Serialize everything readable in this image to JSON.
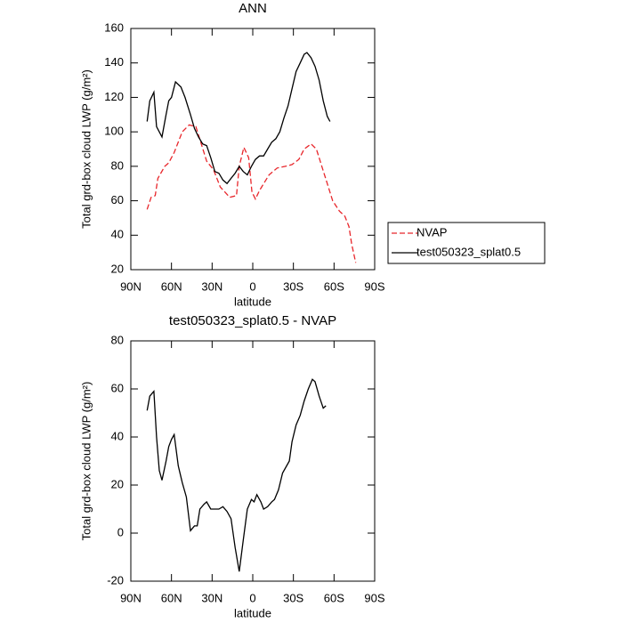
{
  "chart_data": [
    {
      "type": "line",
      "title": "ANN",
      "xlabel": "latitude",
      "ylabel": "Total grd-box cloud LWP (g/m²)",
      "xlim": [
        90,
        -90
      ],
      "ylim": [
        20,
        160
      ],
      "xticks": [
        {
          "value": 90,
          "label": "90N"
        },
        {
          "value": 60,
          "label": "60N"
        },
        {
          "value": 30,
          "label": "30N"
        },
        0,
        {
          "value": -30,
          "label": "30S"
        },
        {
          "value": -60,
          "label": "60S"
        },
        {
          "value": -90,
          "label": "90S"
        }
      ],
      "yticks": [
        20,
        40,
        60,
        80,
        100,
        120,
        140,
        160
      ],
      "legend": "outside right",
      "series": [
        {
          "name": "NVAP",
          "color": "#e8262b",
          "dash": true,
          "x": [
            78,
            75,
            72,
            70,
            65,
            62,
            58,
            52,
            47,
            42,
            34,
            29,
            24,
            17,
            12,
            10,
            6.6,
            3,
            0.6,
            -2,
            -5,
            -12,
            -18,
            -24,
            -29,
            -34,
            -38,
            -43,
            -47,
            -51,
            -55,
            -59,
            -64,
            -68,
            -71,
            -73,
            -76
          ],
          "values": [
            55,
            62,
            63,
            73,
            80,
            82,
            88,
            100,
            104,
            103,
            83,
            78,
            68,
            62,
            63,
            80,
            91,
            85,
            65,
            61,
            66,
            75,
            79,
            80,
            81,
            84,
            90,
            93,
            90,
            80,
            70,
            60,
            54,
            51,
            45,
            35,
            24
          ]
        },
        {
          "name": "test050323_splat0.5",
          "color": "#000000",
          "dash": false,
          "x": [
            78,
            76,
            73,
            71,
            67,
            64,
            62,
            60,
            57,
            53,
            50,
            46,
            43,
            40,
            37,
            34,
            31,
            28,
            25,
            22,
            19,
            16,
            13,
            10,
            7,
            4,
            1,
            -2,
            -5,
            -8,
            -11,
            -14,
            -17,
            -20,
            -23,
            -26,
            -29,
            -32,
            -35,
            -38,
            -40,
            -43,
            -46,
            -49,
            -52,
            -55,
            -57
          ],
          "values": [
            106,
            118,
            123,
            103,
            97,
            110,
            118,
            120,
            129,
            126,
            120,
            110,
            102,
            97,
            93,
            92,
            85,
            77,
            76,
            72,
            70,
            73,
            76,
            80,
            77,
            75,
            80,
            84,
            86,
            86,
            90,
            94,
            96,
            100,
            108,
            115,
            125,
            135,
            140,
            145,
            146,
            143,
            138,
            130,
            118,
            109,
            106
          ]
        }
      ]
    },
    {
      "type": "line",
      "title": "test050323_splat0.5 - NVAP",
      "xlabel": "latitude",
      "ylabel": "Total grd-box cloud LWP (g/m²)",
      "xlim": [
        90,
        -90
      ],
      "ylim": [
        -20,
        80
      ],
      "xticks": [
        {
          "value": 90,
          "label": "90N"
        },
        {
          "value": 60,
          "label": "60N"
        },
        {
          "value": 30,
          "label": "30N"
        },
        0,
        {
          "value": -30,
          "label": "30S"
        },
        {
          "value": -60,
          "label": "60S"
        },
        {
          "value": -90,
          "label": "90S"
        }
      ],
      "yticks": [
        -20,
        0,
        20,
        40,
        60,
        80
      ],
      "series": [
        {
          "color": "#000000",
          "dash": false,
          "x": [
            78,
            76,
            73,
            71,
            69,
            67,
            64,
            62,
            60,
            58,
            55,
            52,
            49,
            46,
            43,
            41,
            39,
            36,
            34,
            31,
            28,
            25,
            22,
            19,
            16,
            13,
            10,
            7,
            4,
            1,
            -1,
            -3,
            -6,
            -8,
            -11,
            -14,
            -16,
            -19,
            -22,
            -27,
            -29,
            -32,
            -35,
            -38,
            -41,
            -44,
            -46,
            -49,
            -52,
            -54
          ],
          "values": [
            51,
            57,
            59,
            40,
            26,
            22,
            30,
            36,
            39,
            41,
            28,
            21,
            15,
            1,
            3,
            3,
            10,
            12,
            13,
            10,
            10,
            10,
            11,
            9,
            6,
            -6,
            -16,
            -3,
            10,
            14,
            13,
            16,
            13,
            10,
            11,
            13,
            14,
            18,
            25,
            30,
            38,
            45,
            49,
            55,
            60,
            64,
            63,
            57,
            52,
            53
          ]
        }
      ]
    }
  ]
}
